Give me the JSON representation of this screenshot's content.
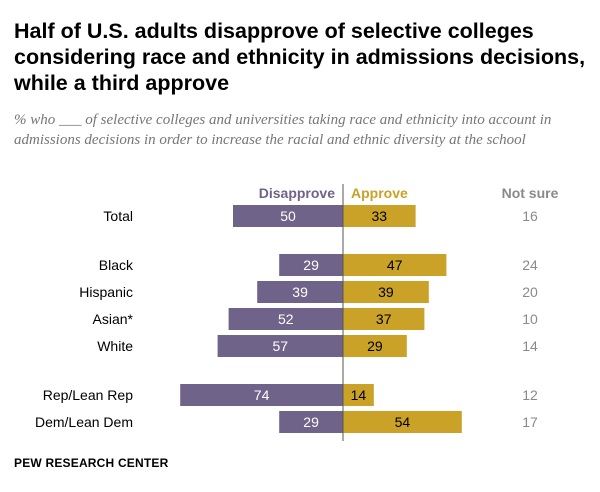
{
  "chart_data": {
    "type": "bar",
    "title": "Half of U.S. adults disapprove of selective colleges considering race and ethnicity in admissions decisions, while a third approve",
    "subtitle": "% who ___ of selective colleges and universities taking race and ethnicity into account in admissions decisions in order to increase the racial and ethnic diversity at the school",
    "headers": {
      "disapprove": "Disapprove",
      "approve": "Approve",
      "not_sure": "Not sure"
    },
    "categories": [
      "Total",
      "Black",
      "Hispanic",
      "Asian*",
      "White",
      "Rep/Lean Rep",
      "Dem/Lean Dem"
    ],
    "groups": [
      [
        0
      ],
      [
        1,
        2,
        3,
        4
      ],
      [
        5,
        6
      ]
    ],
    "series": [
      {
        "name": "Disapprove",
        "values": [
          50,
          29,
          39,
          52,
          57,
          74,
          29
        ],
        "color": "#6f6389",
        "side": "left"
      },
      {
        "name": "Approve",
        "values": [
          33,
          47,
          39,
          37,
          29,
          14,
          54
        ],
        "color": "#c9a227",
        "side": "right"
      },
      {
        "name": "Not sure",
        "values": [
          16,
          24,
          20,
          10,
          14,
          12,
          17
        ],
        "color": "#8a8a8a",
        "side": "column"
      }
    ],
    "value_label_colors": {
      "Disapprove": "#ffffff",
      "Approve": "#000000"
    },
    "header_colors": {
      "Disapprove": "#6f6389",
      "Approve": "#c9a227",
      "Not sure": "#8a8a8a"
    },
    "divider_color": "#555555"
  },
  "source": "PEW RESEARCH CENTER"
}
